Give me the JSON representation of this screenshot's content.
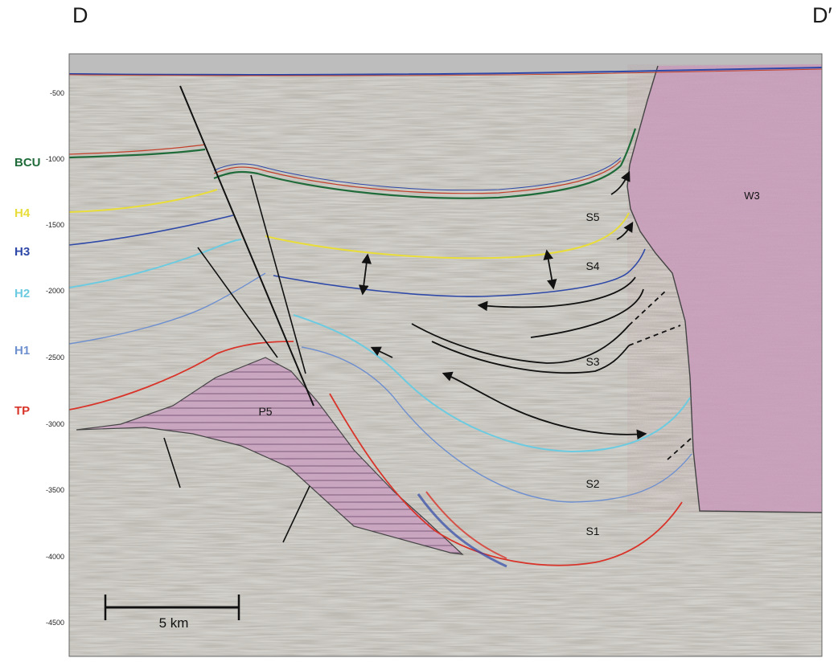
{
  "section": {
    "left_label": "D",
    "right_label": "D′"
  },
  "horizon_keys": [
    {
      "label": "BCU",
      "color": "#1f6b3a"
    },
    {
      "label": "H4",
      "color": "#e8dd3a"
    },
    {
      "label": "H3",
      "color": "#2f49a8"
    },
    {
      "label": "H2",
      "color": "#6ccbe0"
    },
    {
      "label": "H1",
      "color": "#6f90cf"
    },
    {
      "label": "TP",
      "color": "#d8342a"
    }
  ],
  "depth_ticks": [
    "-500",
    "-1000",
    "-1500",
    "-2000",
    "-2500",
    "-3000",
    "-3500",
    "-4000",
    "-4500"
  ],
  "bodies": {
    "w3": {
      "label": "W3",
      "color": "#c9a0bf"
    },
    "p5": {
      "label": "P5",
      "color": "#c9a0bf"
    }
  },
  "sequences": [
    "S5",
    "S4",
    "S3",
    "S2",
    "S1"
  ],
  "scale_bar": {
    "label": "5 km"
  },
  "colors": {
    "seismic_background": "#d3d1cb",
    "fault": "#111111",
    "salt_body": "#c9a0bf"
  }
}
